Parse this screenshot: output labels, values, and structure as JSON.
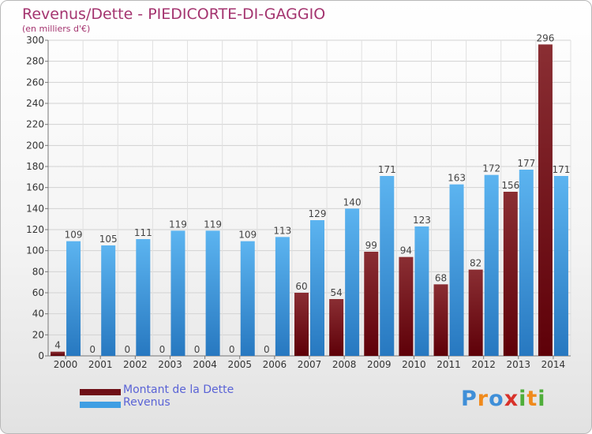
{
  "title": "Revenus/Dette - PIEDICORTE-DI-GAGGIO",
  "subtitle": "(en milliers d'€)",
  "legend": {
    "dette": "Montant de la Dette",
    "revenus": "Revenus"
  },
  "logo": "Proxiti",
  "colors": {
    "dette": "#7a1a1f",
    "revenus": "#3f9ee3",
    "title": "#a4346f",
    "legend_text": "#5a63d6"
  },
  "chart_data": {
    "type": "bar",
    "categories": [
      "2000",
      "2001",
      "2002",
      "2003",
      "2004",
      "2005",
      "2006",
      "2007",
      "2008",
      "2009",
      "2010",
      "2011",
      "2012",
      "2013",
      "2014"
    ],
    "series": [
      {
        "name": "Montant de la Dette",
        "values": [
          4,
          0,
          0,
          0,
          0,
          0,
          0,
          60,
          54,
          99,
          94,
          68,
          82,
          156,
          296
        ]
      },
      {
        "name": "Revenus",
        "values": [
          109,
          105,
          111,
          119,
          119,
          109,
          113,
          129,
          140,
          171,
          123,
          163,
          172,
          177,
          171
        ]
      }
    ],
    "ylim": [
      0,
      300
    ],
    "yticks": [
      0,
      20,
      40,
      60,
      80,
      100,
      120,
      140,
      160,
      180,
      200,
      220,
      240,
      260,
      280,
      300
    ],
    "grid": true,
    "legend_position": "bottom-left"
  }
}
